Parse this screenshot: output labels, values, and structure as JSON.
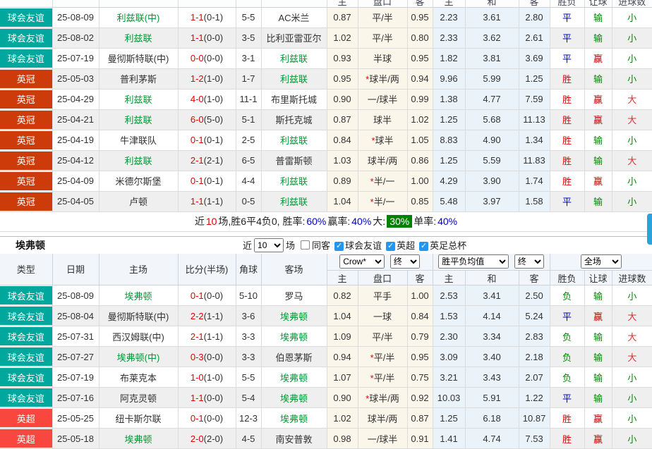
{
  "colors": {
    "badge_friendly": "#00a79c",
    "badge_championship": "#ce3b0b",
    "badge_premier_league": "#f9463f",
    "team_highlight_green": "#009933",
    "score_red": "#e60000",
    "draw_blue": "#0000cc",
    "summary_chip_green": "#008000",
    "percent_blue": "#0000d0",
    "scrollbar_blue": "#2aa3dc"
  },
  "partial_header_cols": [
    "主",
    "盘口",
    "客",
    "主",
    "和",
    "客",
    "胜负",
    "让球",
    "进球数"
  ],
  "leeds": {
    "rows": [
      {
        "lg": "球会友谊",
        "date": "25-08-09",
        "home": "利兹联(中)",
        "hg": true,
        "score": "1-1",
        "half": "(0-1)",
        "cor": "5-5",
        "away": "AC米兰",
        "ag": false,
        "o1": "0.87",
        "hc": "平/半",
        "o2": "0.95",
        "a1": "2.23",
        "a2": "3.61",
        "a3": "2.80",
        "r1": "平",
        "r2": "输",
        "r3": "小"
      },
      {
        "lg": "球会友谊",
        "date": "25-08-02",
        "home": "利兹联",
        "hg": true,
        "score": "1-1",
        "half": "(0-0)",
        "cor": "3-5",
        "away": "比利亚雷亚尔",
        "ag": false,
        "o1": "1.02",
        "hc": "平/半",
        "o2": "0.80",
        "a1": "2.33",
        "a2": "3.62",
        "a3": "2.61",
        "r1": "平",
        "r2": "输",
        "r3": "小"
      },
      {
        "lg": "球会友谊",
        "date": "25-07-19",
        "home": "曼彻斯特联(中)",
        "hg": false,
        "score": "0-0",
        "half": "(0-0)",
        "cor": "3-1",
        "away": "利兹联",
        "ag": true,
        "o1": "0.93",
        "hc": "半球",
        "o2": "0.95",
        "a1": "1.82",
        "a2": "3.81",
        "a3": "3.69",
        "r1": "平",
        "r2": "赢",
        "r3": "小"
      },
      {
        "lg": "英冠",
        "date": "25-05-03",
        "home": "普利茅斯",
        "hg": false,
        "score": "1-2",
        "half": "(1-0)",
        "cor": "1-7",
        "away": "利兹联",
        "ag": true,
        "o1": "0.95",
        "hc": "*球半/两",
        "o2": "0.94",
        "a1": "9.96",
        "a2": "5.99",
        "a3": "1.25",
        "r1": "胜",
        "r2": "输",
        "r3": "小"
      },
      {
        "lg": "英冠",
        "date": "25-04-29",
        "home": "利兹联",
        "hg": true,
        "score": "4-0",
        "half": "(1-0)",
        "cor": "11-1",
        "away": "布里斯托城",
        "ag": false,
        "o1": "0.90",
        "hc": "一/球半",
        "o2": "0.99",
        "a1": "1.38",
        "a2": "4.77",
        "a3": "7.59",
        "r1": "胜",
        "r2": "赢",
        "r3": "大"
      },
      {
        "lg": "英冠",
        "date": "25-04-21",
        "home": "利兹联",
        "hg": true,
        "score": "6-0",
        "half": "(5-0)",
        "cor": "5-1",
        "away": "斯托克城",
        "ag": false,
        "o1": "0.87",
        "hc": "球半",
        "o2": "1.02",
        "a1": "1.25",
        "a2": "5.68",
        "a3": "11.13",
        "r1": "胜",
        "r2": "赢",
        "r3": "大"
      },
      {
        "lg": "英冠",
        "date": "25-04-19",
        "home": "牛津联队",
        "hg": false,
        "score": "0-1",
        "half": "(0-1)",
        "cor": "2-5",
        "away": "利兹联",
        "ag": true,
        "o1": "0.84",
        "hc": "*球半",
        "o2": "1.05",
        "a1": "8.83",
        "a2": "4.90",
        "a3": "1.34",
        "r1": "胜",
        "r2": "输",
        "r3": "小"
      },
      {
        "lg": "英冠",
        "date": "25-04-12",
        "home": "利兹联",
        "hg": true,
        "score": "2-1",
        "half": "(2-1)",
        "cor": "6-5",
        "away": "普雷斯顿",
        "ag": false,
        "o1": "1.03",
        "hc": "球半/两",
        "o2": "0.86",
        "a1": "1.25",
        "a2": "5.59",
        "a3": "11.83",
        "r1": "胜",
        "r2": "输",
        "r3": "大"
      },
      {
        "lg": "英冠",
        "date": "25-04-09",
        "home": "米德尔斯堡",
        "hg": false,
        "score": "0-1",
        "half": "(0-1)",
        "cor": "4-4",
        "away": "利兹联",
        "ag": true,
        "o1": "0.89",
        "hc": "*半/一",
        "o2": "1.00",
        "a1": "4.29",
        "a2": "3.90",
        "a3": "1.74",
        "r1": "胜",
        "r2": "赢",
        "r3": "小"
      },
      {
        "lg": "英冠",
        "date": "25-04-05",
        "home": "卢顿",
        "hg": false,
        "score": "1-1",
        "half": "(1-1)",
        "cor": "0-5",
        "away": "利兹联",
        "ag": true,
        "o1": "1.04",
        "hc": "*半/一",
        "o2": "0.85",
        "a1": "5.48",
        "a2": "3.97",
        "a3": "1.58",
        "r1": "平",
        "r2": "输",
        "r3": "小"
      }
    ],
    "summary_segments": [
      {
        "t": "近",
        "c": "k"
      },
      {
        "t": "10",
        "c": "r"
      },
      {
        "t": "场,胜6平4负0, 胜率:",
        "c": "k"
      },
      {
        "t": "60%",
        "c": "b"
      },
      {
        "t": " 赢率:",
        "c": "k"
      },
      {
        "t": "40%",
        "c": "b"
      },
      {
        "t": " 大:",
        "c": "k"
      },
      {
        "t": "30%",
        "c": "g"
      },
      {
        "t": " 单率:",
        "c": "k"
      },
      {
        "t": "40%",
        "c": "b"
      }
    ]
  },
  "everton": {
    "title": "埃弗顿",
    "controls": {
      "recent_prefix": "近",
      "recent_value": "10",
      "recent_suffix": "场",
      "same_away_label": "同客",
      "same_away_checked": false,
      "league_filters": [
        {
          "label": "球会友谊",
          "checked": true
        },
        {
          "label": "英超",
          "checked": true
        },
        {
          "label": "英足总杯",
          "checked": true
        }
      ]
    },
    "header": {
      "base_cols": [
        "类型",
        "日期",
        "主场",
        "比分(半场)",
        "角球",
        "客场"
      ],
      "odds_group": {
        "select1": "Crow*",
        "select2": "终",
        "cols": [
          "主",
          "盘口",
          "客"
        ]
      },
      "avg_group": {
        "select1": "胜平负均值",
        "select2": "终",
        "cols": [
          "主",
          "和",
          "客"
        ]
      },
      "result_group": {
        "select1": "全场",
        "cols": [
          "胜负",
          "让球",
          "进球数"
        ]
      }
    },
    "rows": [
      {
        "lg": "球会友谊",
        "date": "25-08-09",
        "home": "埃弗顿",
        "hg": true,
        "score": "0-1",
        "half": "(0-0)",
        "cor": "5-10",
        "away": "罗马",
        "ag": false,
        "o1": "0.82",
        "hc": "平手",
        "o2": "1.00",
        "a1": "2.53",
        "a2": "3.41",
        "a3": "2.50",
        "r1": "负",
        "r2": "输",
        "r3": "小"
      },
      {
        "lg": "球会友谊",
        "date": "25-08-04",
        "home": "曼彻斯特联(中)",
        "hg": false,
        "score": "2-2",
        "half": "(1-1)",
        "cor": "3-6",
        "away": "埃弗顿",
        "ag": true,
        "o1": "1.04",
        "hc": "一球",
        "o2": "0.84",
        "a1": "1.53",
        "a2": "4.14",
        "a3": "5.24",
        "r1": "平",
        "r2": "赢",
        "r3": "大"
      },
      {
        "lg": "球会友谊",
        "date": "25-07-31",
        "home": "西汉姆联(中)",
        "hg": false,
        "score": "2-1",
        "half": "(1-1)",
        "cor": "3-3",
        "away": "埃弗顿",
        "ag": true,
        "o1": "1.09",
        "hc": "平/半",
        "o2": "0.79",
        "a1": "2.30",
        "a2": "3.34",
        "a3": "2.83",
        "r1": "负",
        "r2": "输",
        "r3": "大"
      },
      {
        "lg": "球会友谊",
        "date": "25-07-27",
        "home": "埃弗顿(中)",
        "hg": true,
        "score": "0-3",
        "half": "(0-0)",
        "cor": "3-3",
        "away": "伯恩茅斯",
        "ag": false,
        "o1": "0.94",
        "hc": "*平/半",
        "o2": "0.95",
        "a1": "3.09",
        "a2": "3.40",
        "a3": "2.18",
        "r1": "负",
        "r2": "输",
        "r3": "大"
      },
      {
        "lg": "球会友谊",
        "date": "25-07-19",
        "home": "布莱克本",
        "hg": false,
        "score": "1-0",
        "half": "(1-0)",
        "cor": "5-5",
        "away": "埃弗顿",
        "ag": true,
        "o1": "1.07",
        "hc": "*平/半",
        "o2": "0.75",
        "a1": "3.21",
        "a2": "3.43",
        "a3": "2.07",
        "r1": "负",
        "r2": "输",
        "r3": "小"
      },
      {
        "lg": "球会友谊",
        "date": "25-07-16",
        "home": "阿克灵顿",
        "hg": false,
        "score": "1-1",
        "half": "(0-0)",
        "cor": "5-4",
        "away": "埃弗顿",
        "ag": true,
        "o1": "0.90",
        "hc": "*球半/两",
        "o2": "0.92",
        "a1": "10.03",
        "a2": "5.91",
        "a3": "1.22",
        "r1": "平",
        "r2": "输",
        "r3": "小"
      },
      {
        "lg": "英超",
        "date": "25-05-25",
        "home": "纽卡斯尔联",
        "hg": false,
        "score": "0-1",
        "half": "(0-0)",
        "cor": "12-3",
        "away": "埃弗顿",
        "ag": true,
        "o1": "1.02",
        "hc": "球半/两",
        "o2": "0.87",
        "a1": "1.25",
        "a2": "6.18",
        "a3": "10.87",
        "r1": "胜",
        "r2": "赢",
        "r3": "小"
      },
      {
        "lg": "英超",
        "date": "25-05-18",
        "home": "埃弗顿",
        "hg": true,
        "score": "2-0",
        "half": "(2-0)",
        "cor": "4-5",
        "away": "南安普敦",
        "ag": false,
        "o1": "0.98",
        "hc": "一/球半",
        "o2": "0.91",
        "a1": "1.41",
        "a2": "4.74",
        "a3": "7.53",
        "r1": "胜",
        "r2": "赢",
        "r3": "小"
      }
    ]
  }
}
